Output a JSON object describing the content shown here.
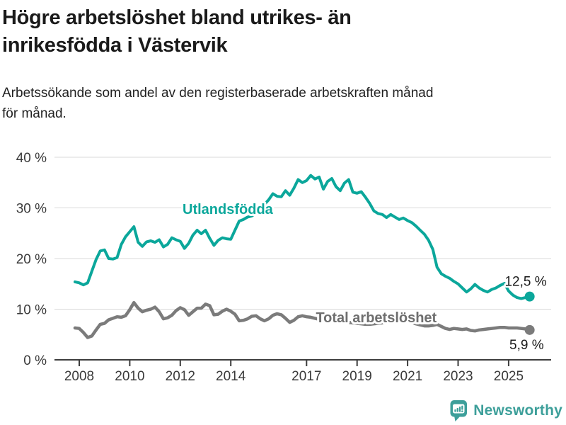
{
  "header": {
    "title_line1": "Högre arbetslöshet bland utrikes- än",
    "title_line2": "inrikesfödda i Västervik",
    "subtitle_line1": "Arbetssökande som andel av den registerbaserade arbetskraften månad",
    "subtitle_line2": "för månad."
  },
  "footer": {
    "brand": "Newsworthy",
    "logo_icon": "newsworthy-speech-bubble-bar-chart-icon"
  },
  "colors": {
    "accent_teal": "#0ba79b",
    "series_gray": "#7b7b7b",
    "gray_label": "#6e6e6e",
    "axis_dark": "#3d3d3d",
    "axis_text": "#3a3a3a",
    "grid": "#d9d9d9",
    "text_dark": "#1a1a1a",
    "brand_teal": "#3d9f9a"
  },
  "chart_data": {
    "type": "line",
    "title": "Högre arbetslöshet bland utrikes- än inrikesfödda i Västervik",
    "subtitle": "Arbetssökande som andel av den registerbaserade arbetskraften månad för månad.",
    "unit": "%",
    "grid": "horizontal",
    "legend_position": "inline-labels",
    "xlim": [
      2007.8,
      2026.6
    ],
    "ylim": [
      0,
      42
    ],
    "x_start": 2007.8333,
    "x_step": 0.1666667,
    "x_ticks": [
      2008,
      2010,
      2012,
      2014,
      2017,
      2019,
      2021,
      2023,
      2025
    ],
    "x_tick_labels": [
      "2008",
      "2010",
      "2012",
      "2014",
      "2017",
      "2019",
      "2021",
      "2023",
      "2025"
    ],
    "y_ticks": [
      0,
      10,
      20,
      30,
      40
    ],
    "y_tick_labels": [
      "0 %",
      "10 %",
      "20 %",
      "30 %",
      "40 %"
    ],
    "series": [
      {
        "id": "utlandsfodda",
        "name": "Utlandsfödda",
        "color": "#0ba79b",
        "label_color": "#0ba79b",
        "line_width": 4,
        "label_anchor": {
          "year": 2013.88,
          "value": 28.8
        },
        "end_value": 12.5,
        "end_label": "12,5 %",
        "end_label_offset": {
          "dx": 24,
          "dy": -15
        },
        "values": [
          15.4,
          15.2,
          14.8,
          15.2,
          17.5,
          19.8,
          21.5,
          21.7,
          20.0,
          19.9,
          20.2,
          22.8,
          24.3,
          25.3,
          26.3,
          23.2,
          22.4,
          23.3,
          23.5,
          23.2,
          23.7,
          22.3,
          22.8,
          24.1,
          23.7,
          23.4,
          22.0,
          23.0,
          24.6,
          25.6,
          24.9,
          25.6,
          24.0,
          22.6,
          23.6,
          24.1,
          23.9,
          23.8,
          25.6,
          27.4,
          27.7,
          28.2,
          28.4,
          29.0,
          29.8,
          30.7,
          31.6,
          32.8,
          32.3,
          32.2,
          33.4,
          32.5,
          33.9,
          35.6,
          35.0,
          35.4,
          36.4,
          35.7,
          36.1,
          33.7,
          35.2,
          35.8,
          34.2,
          33.4,
          34.9,
          35.6,
          33.1,
          32.9,
          33.2,
          32.1,
          30.9,
          29.4,
          28.9,
          28.7,
          28.1,
          28.7,
          28.2,
          27.7,
          28.0,
          27.5,
          27.1,
          26.4,
          25.6,
          24.8,
          23.6,
          21.8,
          18.3,
          17.0,
          16.5,
          16.1,
          15.5,
          15.0,
          14.2,
          13.4,
          14.0,
          14.9,
          14.2,
          13.7,
          13.4,
          13.9,
          14.2,
          14.7,
          15.1,
          13.6,
          12.8,
          12.3,
          12.1,
          12.3,
          12.5
        ]
      },
      {
        "id": "total",
        "name": "Total arbetslöshet",
        "color": "#7b7b7b",
        "label_color": "#6e6e6e",
        "line_width": 4.5,
        "label_anchor": {
          "year": 2019.76,
          "value": 7.4
        },
        "end_value": 5.9,
        "end_label": "5,9 %",
        "end_label_offset": {
          "dx": 20,
          "dy": 27
        },
        "values": [
          6.3,
          6.2,
          5.4,
          4.4,
          4.7,
          5.9,
          7.0,
          7.2,
          7.9,
          8.2,
          8.5,
          8.4,
          8.7,
          9.9,
          11.3,
          10.2,
          9.5,
          9.8,
          10.0,
          10.4,
          9.5,
          8.1,
          8.3,
          8.8,
          9.7,
          10.3,
          9.9,
          8.8,
          9.5,
          10.2,
          10.2,
          11.0,
          10.7,
          8.9,
          9.0,
          9.6,
          10.0,
          9.6,
          9.0,
          7.7,
          7.8,
          8.1,
          8.6,
          8.7,
          8.1,
          7.7,
          8.1,
          8.8,
          9.1,
          8.9,
          8.2,
          7.4,
          7.8,
          8.5,
          8.7,
          8.5,
          8.4,
          8.2,
          8.0,
          7.9,
          7.8,
          7.8,
          7.7,
          7.5,
          7.5,
          7.4,
          7.3,
          7.2,
          7.1,
          7.0,
          7.0,
          7.1,
          7.2,
          7.3,
          8.5,
          8.9,
          8.6,
          8.4,
          8.0,
          7.8,
          7.4,
          7.1,
          6.9,
          6.7,
          6.7,
          6.8,
          7.0,
          6.6,
          6.2,
          6.0,
          6.2,
          6.1,
          6.0,
          6.1,
          5.8,
          5.7,
          5.9,
          6.0,
          6.1,
          6.2,
          6.3,
          6.4,
          6.4,
          6.3,
          6.3,
          6.3,
          6.2,
          6.1,
          5.9
        ]
      }
    ]
  }
}
